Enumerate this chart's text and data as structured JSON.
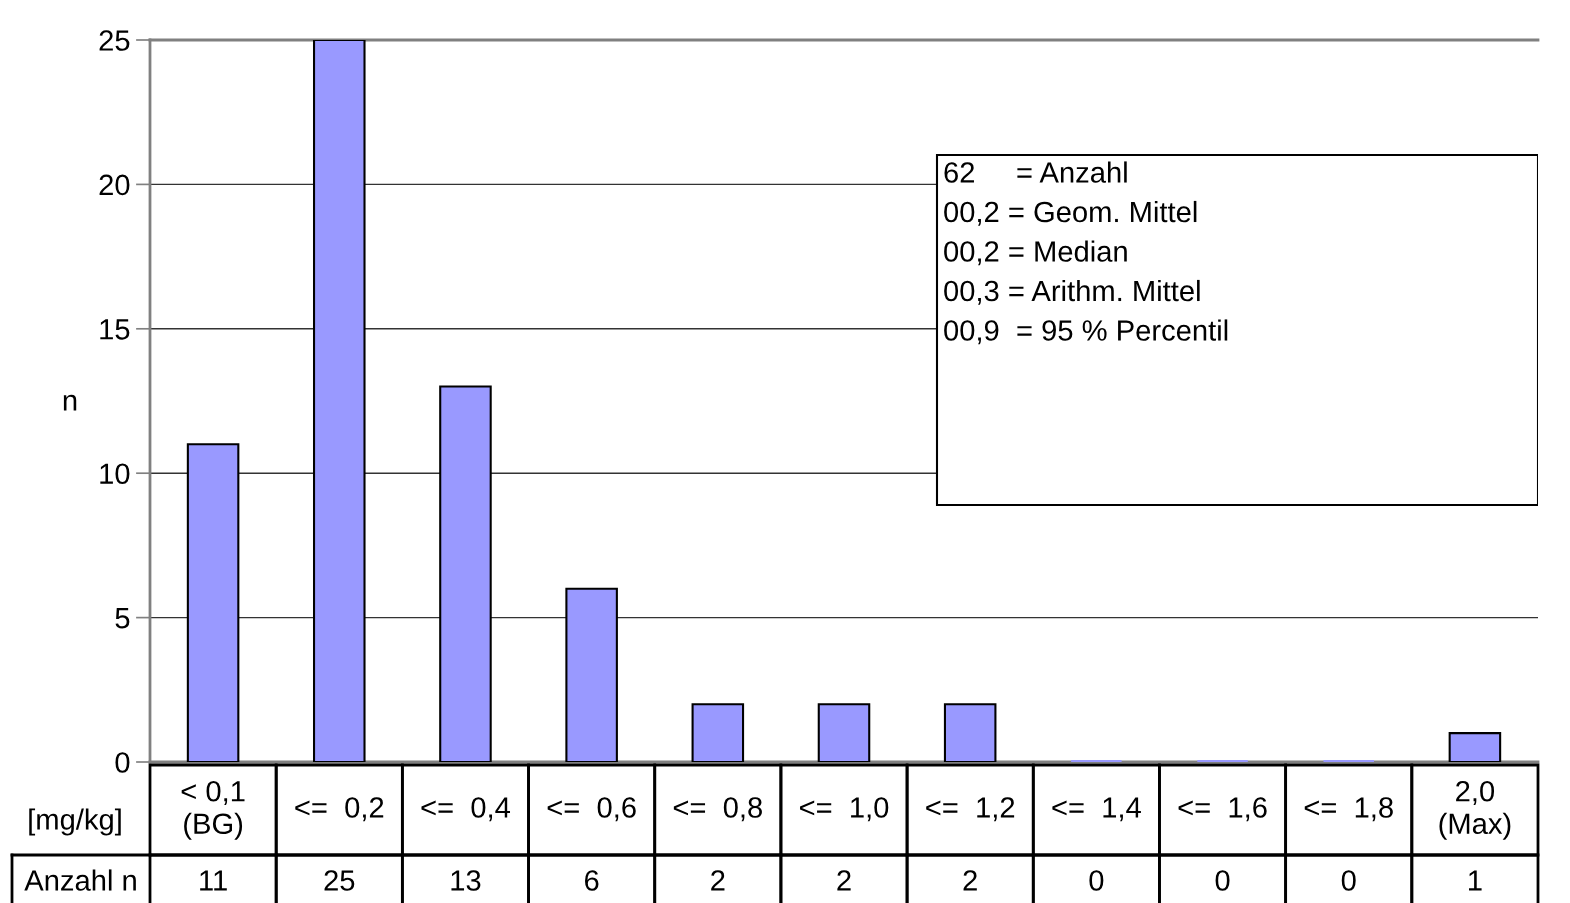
{
  "chart_data": {
    "type": "bar",
    "categories": [
      "< 0,1\n(BG)",
      "<=  0,2",
      "<=  0,4",
      "<=  0,6",
      "<=  0,8",
      "<=  1,0",
      "<=  1,2",
      "<=  1,4",
      "<=  1,6",
      "<=  1,8",
      "2,0\n(Max)"
    ],
    "values": [
      11,
      25,
      13,
      6,
      2,
      2,
      2,
      0,
      0,
      0,
      1
    ],
    "color": "#9999ff",
    "xlabel": "[mg/kg]",
    "ylabel": "n",
    "ylim": [
      0,
      25
    ],
    "yticks": [
      0,
      5,
      10,
      15,
      20,
      25
    ],
    "grid": "y",
    "data_labels": true,
    "annotations": [
      "62     = Anzahl",
      "00,2 = Geom. Mittel",
      "00,2 = Median",
      "00,3 = Arithm. Mittel",
      "00,9  = 95 % Percentil",
      "Anzahl n"
    ]
  }
}
